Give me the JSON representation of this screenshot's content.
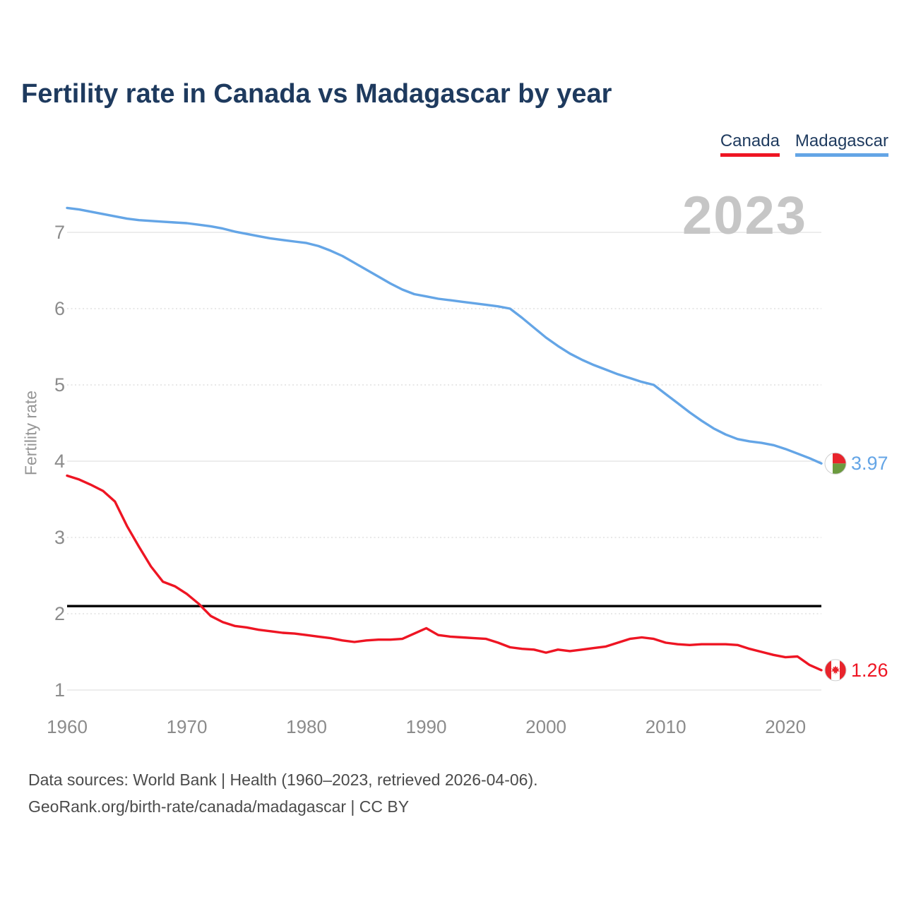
{
  "title": "Fertility rate in Canada vs Madagascar by year",
  "watermark_year": "2023",
  "legend": {
    "items": [
      {
        "label": "Canada",
        "color": "#ee1523"
      },
      {
        "label": "Madagascar",
        "color": "#64a5e6"
      }
    ]
  },
  "footer": {
    "line1": "Data sources: World Bank | Health (1960–2023, retrieved 2026-04-06).",
    "line2": "GeoRank.org/birth-rate/canada/madagascar | CC BY"
  },
  "chart_data": {
    "type": "line",
    "title": "Fertility rate in Canada vs Madagascar by year",
    "xlabel": "",
    "ylabel": "Fertility rate",
    "x_range": [
      1960,
      2023
    ],
    "ylim": [
      1,
      7.6
    ],
    "grid": "on",
    "legend_position": "top-right",
    "x_ticks": [
      1960,
      1970,
      1980,
      1990,
      2000,
      2010,
      2020
    ],
    "y_ticks": [
      1,
      2,
      3,
      4,
      5,
      6,
      7
    ],
    "years": [
      1960,
      1961,
      1962,
      1963,
      1964,
      1965,
      1966,
      1967,
      1968,
      1969,
      1970,
      1971,
      1972,
      1973,
      1974,
      1975,
      1976,
      1977,
      1978,
      1979,
      1980,
      1981,
      1982,
      1983,
      1984,
      1985,
      1986,
      1987,
      1988,
      1989,
      1990,
      1991,
      1992,
      1993,
      1994,
      1995,
      1996,
      1997,
      1998,
      1999,
      2000,
      2001,
      2002,
      2003,
      2004,
      2005,
      2006,
      2007,
      2008,
      2009,
      2010,
      2011,
      2012,
      2013,
      2014,
      2015,
      2016,
      2017,
      2018,
      2019,
      2020,
      2021,
      2022,
      2023
    ],
    "series": [
      {
        "name": "Canada",
        "color": "#ee1523",
        "end_label": "1.26",
        "flag": "canada",
        "values": [
          3.81,
          3.76,
          3.69,
          3.61,
          3.47,
          3.15,
          2.88,
          2.62,
          2.42,
          2.36,
          2.26,
          2.13,
          1.97,
          1.89,
          1.84,
          1.82,
          1.79,
          1.77,
          1.75,
          1.74,
          1.72,
          1.7,
          1.68,
          1.65,
          1.63,
          1.65,
          1.66,
          1.66,
          1.67,
          1.74,
          1.81,
          1.72,
          1.7,
          1.69,
          1.68,
          1.67,
          1.62,
          1.56,
          1.54,
          1.53,
          1.49,
          1.53,
          1.51,
          1.53,
          1.55,
          1.57,
          1.62,
          1.67,
          1.69,
          1.67,
          1.62,
          1.6,
          1.59,
          1.6,
          1.6,
          1.6,
          1.59,
          1.54,
          1.5,
          1.46,
          1.43,
          1.44,
          1.33,
          1.26
        ]
      },
      {
        "name": "Madagascar",
        "color": "#64a5e6",
        "end_label": "3.97",
        "flag": "madagascar",
        "values": [
          7.32,
          7.3,
          7.27,
          7.24,
          7.21,
          7.18,
          7.16,
          7.15,
          7.14,
          7.13,
          7.12,
          7.1,
          7.08,
          7.05,
          7.01,
          6.98,
          6.95,
          6.92,
          6.9,
          6.88,
          6.86,
          6.82,
          6.76,
          6.69,
          6.6,
          6.51,
          6.42,
          6.33,
          6.25,
          6.19,
          6.16,
          6.13,
          6.11,
          6.09,
          6.07,
          6.05,
          6.03,
          6.0,
          5.88,
          5.75,
          5.62,
          5.51,
          5.41,
          5.33,
          5.26,
          5.2,
          5.14,
          5.09,
          5.04,
          5.0,
          4.88,
          4.76,
          4.64,
          4.53,
          4.43,
          4.35,
          4.29,
          4.26,
          4.24,
          4.21,
          4.16,
          4.1,
          4.04,
          3.97
        ]
      }
    ],
    "reference_line": {
      "value": 2.1,
      "color": "#000000"
    },
    "flag_colors": {
      "canada_red": "#e8242c",
      "madagascar_red": "#e8242c",
      "madagascar_green": "#6b9a3e",
      "white": "#ffffff"
    }
  }
}
